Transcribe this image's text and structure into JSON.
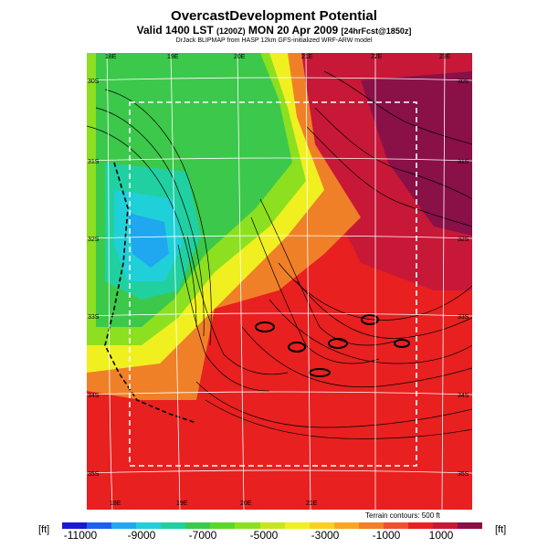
{
  "title": "OvercastDevelopment Potential",
  "subtitle_main": "Valid 1400 LST",
  "subtitle_utc": "(1200Z)",
  "subtitle_date": "MON 20 Apr 2009",
  "subtitle_fcst": "[24hrFcst@1850z]",
  "credit": "DrJack BLIPMAP from HASP 12km GFS-initialized WRF-ARW model",
  "lon_labels_top": [
    "18E",
    "19E",
    "20E",
    "21E",
    "22E",
    "23E"
  ],
  "lon_labels_bottom": [
    "18E",
    "19E",
    "20E",
    "21E"
  ],
  "lat_labels_left": [
    "30S",
    "31S",
    "32S",
    "33S",
    "34S",
    "35S"
  ],
  "lat_labels_right": [
    "30S",
    "31S",
    "32S",
    "33S",
    "34S",
    "35S"
  ],
  "terrain_note": "Terrain contours: 500 ft",
  "unit_left": "[ft]",
  "unit_right": "[ft]",
  "colorbar_labels": [
    "-11000",
    "-9000",
    "-7000",
    "-5000",
    "-3000",
    "-1000",
    "1000"
  ],
  "colorbar_colors": [
    "#1a1ad0",
    "#1f5ff0",
    "#1fa8f0",
    "#20d0d8",
    "#20d0a0",
    "#3cc84a",
    "#5ad82a",
    "#8ce020",
    "#c8e620",
    "#f0f020",
    "#f8d020",
    "#f8a820",
    "#f08028",
    "#f05030",
    "#e82020",
    "#c81838",
    "#8a1048"
  ]
}
